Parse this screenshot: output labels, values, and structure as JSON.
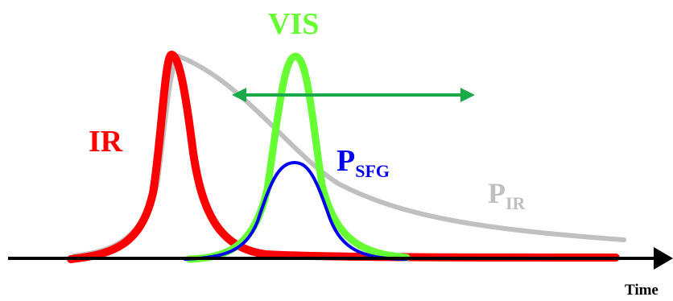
{
  "labels": {
    "ir": "IR",
    "vis": "VIS",
    "p_sfg": {
      "main": "P",
      "sub": "SFG"
    },
    "p_ir": {
      "main": "P",
      "sub": "IR"
    },
    "time_axis": "Time"
  },
  "colors": {
    "ir": "#ff0000",
    "vis": "#66ff33",
    "p_sfg": "#0000ee",
    "p_ir": "#c0c0c0",
    "delay_arrow": "#1aaa4a",
    "axis": "#000000"
  },
  "icons": {
    "delay_arrow": "double-headed-arrow",
    "time_axis": "right-arrow"
  }
}
